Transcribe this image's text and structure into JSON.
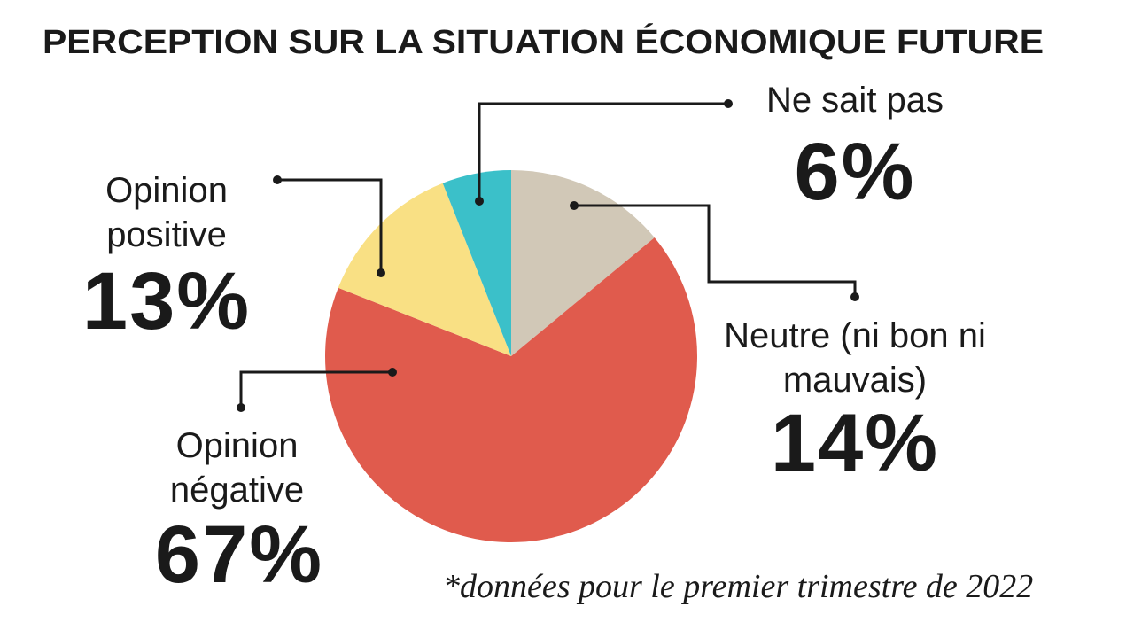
{
  "chart_data": {
    "type": "pie",
    "title": "PERCEPTION SUR LA SITUATION ÉCONOMIQUE FUTURE",
    "categories": [
      "Neutre (ni bon ni mauvais)",
      "Opinion négative",
      "Opinion positive",
      "Ne sait pas"
    ],
    "values": [
      14,
      67,
      13,
      6
    ],
    "value_labels": [
      "14%",
      "67%",
      "13%",
      "6%"
    ],
    "colors": [
      "#d1c8b7",
      "#e05b4d",
      "#f9e084",
      "#3bc0c9"
    ],
    "note": "*données pour le premier trimestre de 2022"
  }
}
